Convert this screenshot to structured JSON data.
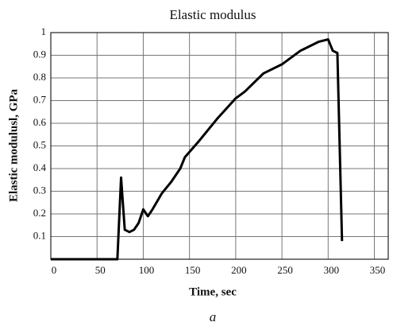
{
  "chart_data": {
    "type": "line",
    "title": "Elastic modulus",
    "x_label": "Time, sec",
    "y_label": "Elastic modulusl, GPa",
    "caption": "a",
    "x": [
      0,
      72,
      76,
      80,
      85,
      90,
      95,
      100,
      105,
      110,
      120,
      130,
      140,
      145,
      160,
      180,
      200,
      210,
      230,
      250,
      270,
      290,
      300,
      305,
      310,
      315
    ],
    "values": [
      0,
      0,
      0.36,
      0.13,
      0.12,
      0.13,
      0.16,
      0.22,
      0.19,
      0.22,
      0.29,
      0.34,
      0.4,
      0.45,
      0.52,
      0.62,
      0.71,
      0.74,
      0.82,
      0.86,
      0.92,
      0.96,
      0.97,
      0.92,
      0.91,
      0.08
    ],
    "color": "#000000",
    "xlim": [
      0,
      365
    ],
    "xticks": [
      0,
      50,
      100,
      150,
      200,
      250,
      300,
      350
    ],
    "ylim": [
      0,
      1
    ],
    "yticks": [
      0.1,
      0.2,
      0.3,
      0.4,
      0.5,
      0.6,
      0.7,
      0.8,
      0.9,
      1
    ],
    "grid": true
  }
}
